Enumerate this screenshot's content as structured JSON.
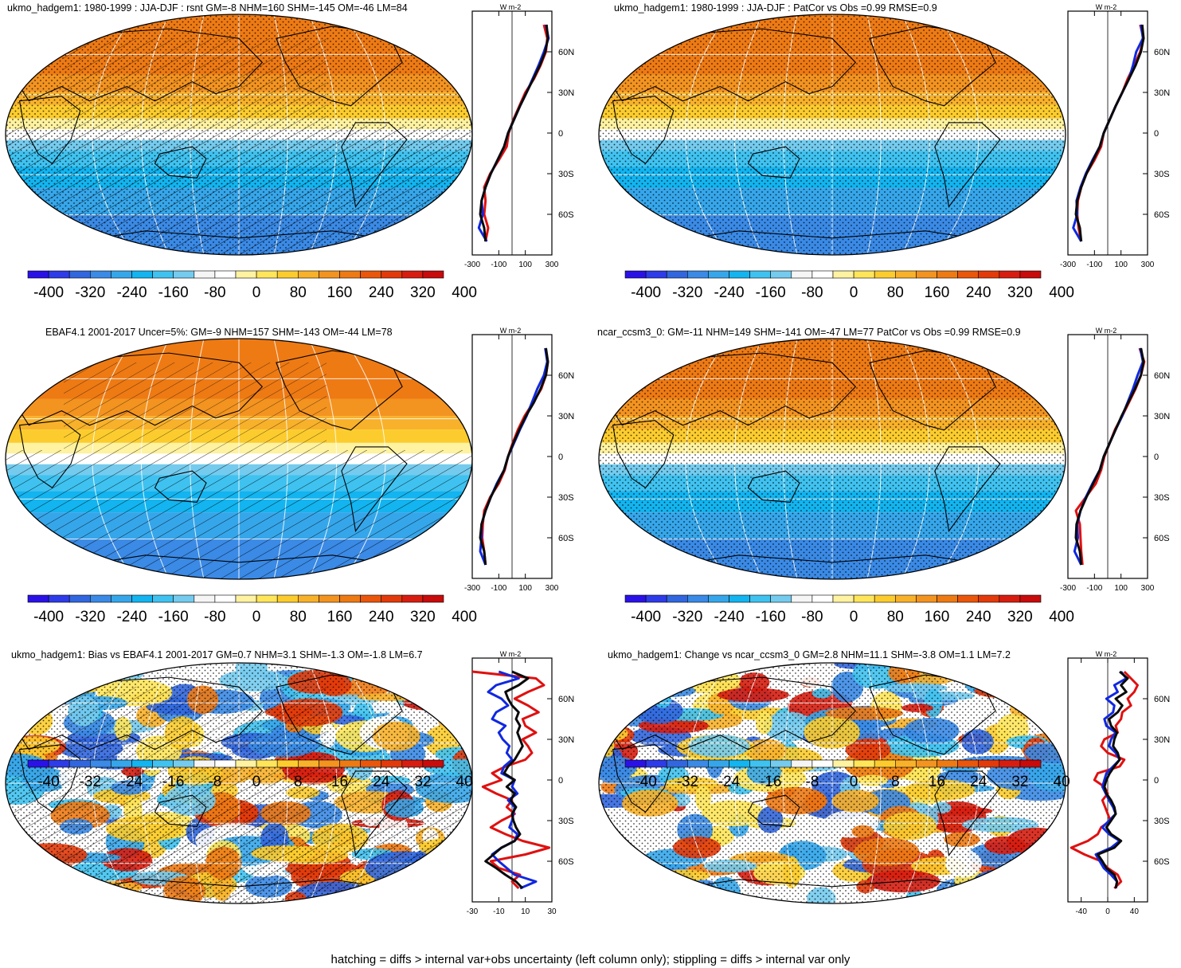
{
  "colors": {
    "bias_colorbar": [
      "#2a12e6",
      "#2e3be8",
      "#3166de",
      "#3a8ae6",
      "#36a6ea",
      "#13b4ef",
      "#3fc2f0",
      "#74cbee",
      "#f5f5f5",
      "#ffffff",
      "#fff2a0",
      "#ffe55a",
      "#fccc2e",
      "#f8b12a",
      "#f39320",
      "#ee7a14",
      "#e9560c",
      "#e23a0a",
      "#d71d10",
      "#c80b0b"
    ],
    "ocean_white": "#ffffff",
    "obs_line": "#0a0a0a",
    "blue_line": "#1028e0",
    "red_line": "#e01010"
  },
  "panels": [
    {
      "id": "top-left",
      "title": "ukmo_hadgem1: 1980-1999 : JJA-DJF : rsnt GM=-8 NHM=160 SHM=-145 OM=-46 LM=84",
      "field": "seasonal",
      "hatching": true,
      "stippling": true
    },
    {
      "id": "top-right",
      "title": "ukmo_hadgem1: 1980-1999 : JJA-DJF : PatCor vs Obs =0.99 RMSE=0.9",
      "field": "seasonal",
      "hatching": false,
      "stippling": true
    },
    {
      "id": "mid-left",
      "title": "EBAF4.1 2001-2017 Uncer=5%: GM=-9 NHM=157 SHM=-143 OM=-44 LM=78",
      "field": "seasonal",
      "hatching": true,
      "stippling": false
    },
    {
      "id": "mid-right",
      "title": "ncar_ccsm3_0: GM=-11 NHM=149 SHM=-141 OM=-47 LM=77 PatCor vs Obs =0.99 RMSE=0.9",
      "field": "seasonal",
      "hatching": false,
      "stippling": true
    },
    {
      "id": "bottom-left",
      "title": "ukmo_hadgem1: Bias vs EBAF4.1 2001-2017 GM=0.7 NHM=3.1 SHM=-1.3 OM=-1.8 LM=6.7",
      "field": "bias",
      "hatching": true,
      "stippling": true
    },
    {
      "id": "bottom-right",
      "title": "ukmo_hadgem1: Change vs ncar_ccsm3_0 GM=2.8 NHM=11.1 SHM=-3.8 OM=1.1 LM=7.2",
      "field": "bias",
      "hatching": false,
      "stippling": true
    }
  ],
  "chart_data": [
    {
      "type": "heatmap",
      "projection": "robinson",
      "colorbar_labels": [
        "-400",
        "-320",
        "-240",
        "-160",
        "-80",
        "0",
        "80",
        "160",
        "240",
        "320",
        "400"
      ],
      "zonal_profile": {
        "units": "W m-2",
        "x_ticks": [
          "-300",
          "-100",
          "100",
          "300"
        ],
        "y_ticks": [
          "60N",
          "30N",
          "0",
          "30S",
          "60S"
        ],
        "lat": [
          80,
          70,
          60,
          50,
          40,
          30,
          20,
          10,
          0,
          -10,
          -20,
          -30,
          -40,
          -50,
          -60,
          -70,
          -80
        ],
        "series": [
          {
            "color": "black",
            "values": [
              260,
              270,
              250,
              210,
              160,
              110,
              60,
              15,
              -30,
              -60,
              -110,
              -160,
              -200,
              -230,
              -240,
              -210,
              -200
            ]
          },
          {
            "color": "blue",
            "values": [
              255,
              275,
              240,
              200,
              155,
              110,
              60,
              15,
              -30,
              -60,
              -110,
              -160,
              -200,
              -230,
              -220,
              -250,
              -190
            ]
          },
          {
            "color": "red",
            "values": [
              240,
              265,
              255,
              215,
              165,
              100,
              55,
              10,
              -25,
              -40,
              -100,
              -165,
              -210,
              -200,
              -210,
              -180,
              -200
            ]
          }
        ]
      }
    },
    {
      "type": "heatmap",
      "projection": "robinson",
      "colorbar_labels": [
        "-400",
        "-320",
        "-240",
        "-160",
        "-80",
        "0",
        "80",
        "160",
        "240",
        "320",
        "400"
      ],
      "zonal_profile": {
        "units": "W m-2",
        "x_ticks": [
          "-300",
          "-100",
          "100",
          "300"
        ],
        "y_ticks": [
          "60N",
          "30N",
          "0",
          "30S",
          "60S"
        ],
        "lat": [
          80,
          70,
          60,
          50,
          40,
          30,
          20,
          10,
          0,
          -10,
          -20,
          -30,
          -40,
          -50,
          -60,
          -70,
          -80
        ],
        "series": [
          {
            "color": "black",
            "values": [
              260,
              270,
              250,
              210,
              160,
              110,
              60,
              15,
              -30,
              -60,
              -110,
              -160,
              -200,
              -230,
              -240,
              -210,
              -200
            ]
          },
          {
            "color": "blue",
            "values": [
              250,
              265,
              215,
              190,
              160,
              110,
              60,
              15,
              -30,
              -60,
              -115,
              -165,
              -205,
              -235,
              -230,
              -260,
              -200
            ]
          },
          {
            "color": "red",
            "values": [
              245,
              270,
              245,
              200,
              150,
              110,
              60,
              15,
              -30,
              -50,
              -100,
              -160,
              -200,
              -225,
              -230,
              -220,
              -200
            ]
          }
        ]
      }
    },
    {
      "type": "heatmap",
      "projection": "robinson",
      "colorbar_labels": [
        "-400",
        "-320",
        "-240",
        "-160",
        "-80",
        "0",
        "80",
        "160",
        "240",
        "320",
        "400"
      ],
      "zonal_profile": {
        "units": "W m-2",
        "x_ticks": [
          "-300",
          "-100",
          "100",
          "300"
        ],
        "y_ticks": [
          "60N",
          "30N",
          "0",
          "30S",
          "60S"
        ],
        "lat": [
          80,
          70,
          60,
          50,
          40,
          30,
          20,
          10,
          0,
          -10,
          -20,
          -30,
          -40,
          -50,
          -60,
          -70,
          -80
        ],
        "series": [
          {
            "color": "black",
            "values": [
              255,
              270,
              255,
              215,
              165,
              105,
              55,
              10,
              -30,
              -60,
              -110,
              -160,
              -200,
              -230,
              -240,
              -210,
              -200
            ]
          },
          {
            "color": "blue",
            "values": [
              250,
              265,
              240,
              190,
              150,
              110,
              60,
              15,
              -30,
              -60,
              -115,
              -160,
              -200,
              -230,
              -230,
              -240,
              -200
            ]
          },
          {
            "color": "red",
            "values": [
              250,
              270,
              255,
              220,
              160,
              95,
              45,
              5,
              -30,
              -55,
              -100,
              -165,
              -210,
              -220,
              -225,
              -210,
              -200
            ]
          }
        ]
      }
    },
    {
      "type": "heatmap",
      "projection": "robinson",
      "colorbar_labels": [
        "-400",
        "-320",
        "-240",
        "-160",
        "-80",
        "0",
        "80",
        "160",
        "240",
        "320",
        "400"
      ],
      "zonal_profile": {
        "units": "W m-2",
        "x_ticks": [
          "-300",
          "-100",
          "100",
          "300"
        ],
        "y_ticks": [
          "60N",
          "30N",
          "0",
          "30S",
          "60S"
        ],
        "lat": [
          80,
          70,
          60,
          50,
          40,
          30,
          20,
          10,
          0,
          -10,
          -20,
          -30,
          -40,
          -50,
          -60,
          -70,
          -80
        ],
        "series": [
          {
            "color": "black",
            "values": [
              250,
              270,
              250,
              205,
              155,
              105,
              60,
              15,
              -30,
              -60,
              -110,
              -160,
              -205,
              -235,
              -240,
              -210,
              -200
            ]
          },
          {
            "color": "blue",
            "values": [
              245,
              265,
              225,
              190,
              150,
              110,
              60,
              15,
              -30,
              -60,
              -115,
              -165,
              -205,
              -230,
              -225,
              -250,
              -200
            ]
          },
          {
            "color": "red",
            "values": [
              240,
              275,
              250,
              210,
              160,
              110,
              55,
              15,
              -25,
              -50,
              -90,
              -165,
              -240,
              -210,
              -205,
              -200,
              -190
            ]
          }
        ]
      }
    },
    {
      "type": "heatmap",
      "projection": "robinson",
      "colorbar_labels": [
        "-40",
        "-32",
        "-24",
        "-16",
        "-8",
        "0",
        "8",
        "16",
        "24",
        "32",
        "40"
      ],
      "zonal_profile": {
        "units": "W m-2",
        "x_ticks": [
          "-30",
          "-10",
          "10",
          "30"
        ],
        "y_ticks": [
          "60N",
          "30N",
          "0",
          "30S",
          "60S"
        ],
        "lat": [
          80,
          75,
          70,
          65,
          60,
          55,
          50,
          45,
          40,
          35,
          30,
          25,
          20,
          15,
          10,
          5,
          0,
          -5,
          -10,
          -15,
          -20,
          -25,
          -30,
          -35,
          -40,
          -45,
          -50,
          -55,
          -60,
          -65,
          -70,
          -75,
          -80
        ],
        "series": [
          {
            "color": "black",
            "values": [
              0,
              12,
              5,
              -5,
              -3,
              0,
              5,
              3,
              6,
              4,
              6,
              8,
              5,
              2,
              -3,
              -6,
              2,
              -4,
              2,
              -1,
              3,
              0,
              1,
              3,
              6,
              2,
              -8,
              -14,
              -20,
              -12,
              -5,
              3,
              8
            ]
          },
          {
            "color": "blue",
            "values": [
              -10,
              5,
              -12,
              -18,
              -8,
              -3,
              -12,
              -15,
              -5,
              -10,
              -7,
              -2,
              -4,
              0,
              -6,
              -8,
              2,
              0,
              4,
              -3,
              2,
              1,
              0,
              -2,
              4,
              2,
              -8,
              -15,
              -10,
              -4,
              2,
              18,
              6
            ]
          },
          {
            "color": "red",
            "values": [
              -30,
              18,
              24,
              12,
              2,
              12,
              20,
              8,
              10,
              18,
              8,
              12,
              15,
              10,
              -5,
              -15,
              -8,
              -22,
              -12,
              0,
              -4,
              2,
              -8,
              -16,
              -5,
              8,
              28,
              10,
              -16,
              -10,
              6,
              0,
              5
            ]
          }
        ]
      }
    },
    {
      "type": "heatmap",
      "projection": "robinson",
      "colorbar_labels": [
        "-40",
        "-32",
        "-24",
        "-16",
        "-8",
        "0",
        "8",
        "16",
        "24",
        "32",
        "40"
      ],
      "zonal_profile": {
        "units": "W m-2",
        "x_ticks": [
          "-40",
          "0",
          "40"
        ],
        "y_ticks": [
          "60N",
          "30N",
          "0",
          "30S",
          "60S"
        ],
        "lat": [
          80,
          75,
          70,
          65,
          60,
          55,
          50,
          45,
          40,
          35,
          30,
          25,
          20,
          15,
          10,
          5,
          0,
          -5,
          -10,
          -15,
          -20,
          -25,
          -30,
          -35,
          -40,
          -45,
          -50,
          -55,
          -60,
          -65,
          -70,
          -75,
          -80
        ],
        "series": [
          {
            "color": "black",
            "values": [
              18,
              30,
              20,
              28,
              12,
              22,
              15,
              2,
              5,
              14,
              10,
              8,
              15,
              18,
              10,
              3,
              -2,
              -5,
              -2,
              5,
              10,
              12,
              5,
              -2,
              5,
              20,
              10,
              -15,
              -8,
              -2,
              10,
              14,
              12
            ]
          },
          {
            "color": "blue",
            "values": [
              20,
              28,
              10,
              15,
              -2,
              10,
              8,
              -5,
              -2,
              12,
              5,
              2,
              12,
              18,
              8,
              -2,
              -5,
              -8,
              -3,
              2,
              8,
              12,
              2,
              -8,
              2,
              18,
              5,
              -18,
              -12,
              -6,
              5,
              14,
              12
            ]
          },
          {
            "color": "red",
            "values": [
              25,
              35,
              45,
              40,
              30,
              35,
              22,
              20,
              12,
              15,
              -5,
              -10,
              0,
              25,
              18,
              -15,
              -20,
              -5,
              0,
              -8,
              -4,
              0,
              4,
              -10,
              -15,
              -30,
              -55,
              -35,
              -10,
              0,
              15,
              20,
              10
            ]
          }
        ]
      }
    }
  ],
  "footnote": "hatching = diffs > internal var+obs uncertainty (left column only); stippling = diffs > internal var only"
}
